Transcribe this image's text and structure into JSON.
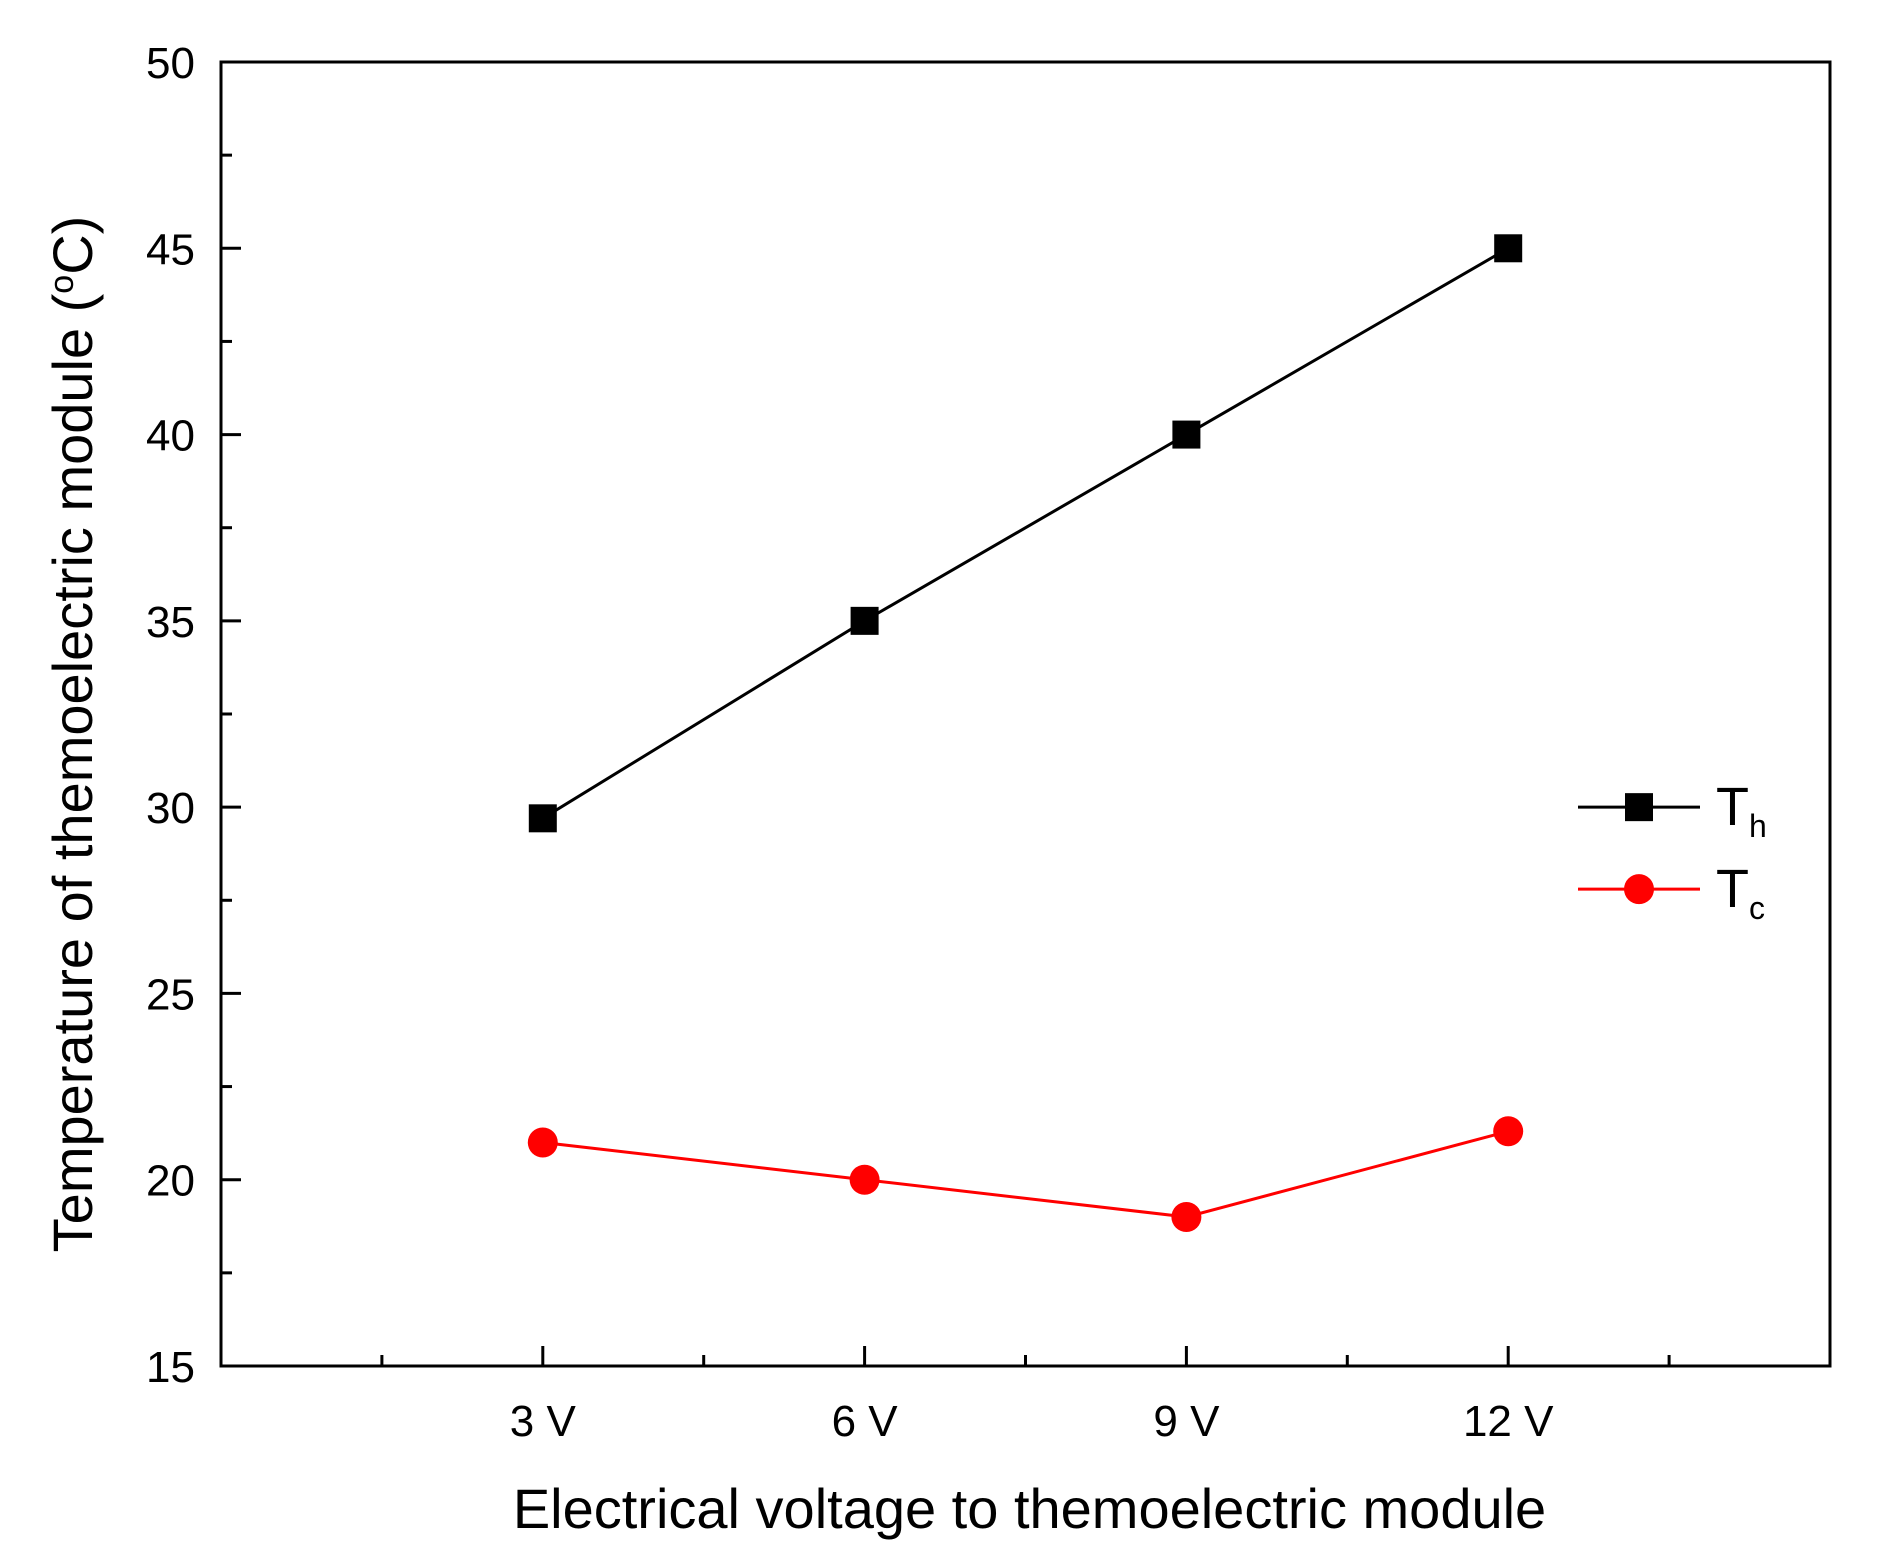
{
  "chart_data": {
    "type": "line",
    "title": "",
    "xlabel": "Electrical voltage to themoelectric module",
    "ylabel_main": "Temperature of themoelectric module (",
    "ylabel_degree": "o",
    "ylabel_unit": "C)",
    "categories": [
      "3 V",
      "6 V",
      "9 V",
      "12 V"
    ],
    "ylim": [
      15,
      50
    ],
    "yticks": [
      15,
      20,
      25,
      30,
      35,
      40,
      45,
      50
    ],
    "ytick_labels": [
      "15",
      "20",
      "25",
      "30",
      "35",
      "40",
      "45",
      "50"
    ],
    "grid": false,
    "legend_position": "right",
    "series": [
      {
        "name": "Th",
        "label_main": "T",
        "label_sub": "h",
        "color": "#000000",
        "marker": "square",
        "values": [
          29.7,
          35,
          40,
          45
        ]
      },
      {
        "name": "Tc",
        "label_main": "T",
        "label_sub": "c",
        "color": "#ff0000",
        "marker": "circle",
        "values": [
          21,
          20,
          19,
          21.3
        ]
      }
    ]
  }
}
